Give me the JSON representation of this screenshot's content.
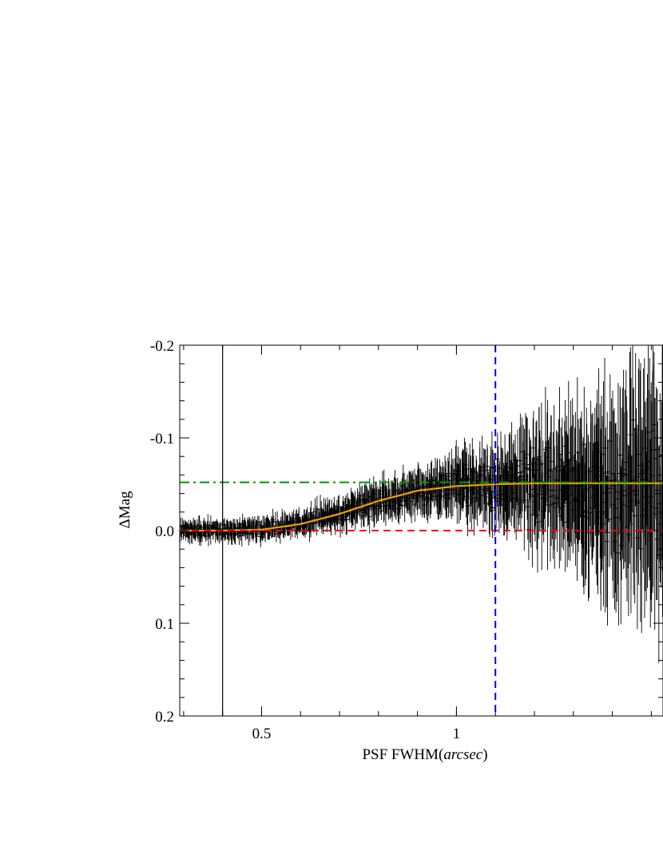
{
  "chart_data": {
    "type": "scatter",
    "title": "",
    "xlabel": "PSF FWHM",
    "xlabel_unit": "arcsec",
    "ylabel": "ΔMag",
    "xlim": [
      0.29,
      1.53
    ],
    "ylim": [
      0.2,
      -0.2
    ],
    "y_axis_inverted": true,
    "x_ticks": [
      0.5,
      1
    ],
    "x_tick_labels": [
      "0.5",
      "1"
    ],
    "y_ticks": [
      -0.2,
      -0.1,
      0.0,
      0.1,
      0.2
    ],
    "y_tick_labels": [
      "-0.2",
      "-0.1",
      "0.0",
      "0.1",
      "0.2"
    ],
    "grid": false,
    "data_series": {
      "kind": "noisy points with vertical error bars",
      "color": "#000000",
      "x_start": 0.29,
      "x_end": 1.53,
      "trend_y": [
        {
          "x": 0.3,
          "y": 0.0
        },
        {
          "x": 0.4,
          "y": 0.0
        },
        {
          "x": 0.5,
          "y": -0.001
        },
        {
          "x": 0.6,
          "y": -0.008
        },
        {
          "x": 0.7,
          "y": -0.018
        },
        {
          "x": 0.8,
          "y": -0.032
        },
        {
          "x": 0.9,
          "y": -0.043
        },
        {
          "x": 1.0,
          "y": -0.048
        },
        {
          "x": 1.1,
          "y": -0.05
        },
        {
          "x": 1.2,
          "y": -0.05
        },
        {
          "x": 1.3,
          "y": -0.045
        },
        {
          "x": 1.4,
          "y": -0.04
        },
        {
          "x": 1.5,
          "y": -0.04
        }
      ],
      "error_bar_half_height": [
        {
          "x": 0.3,
          "e": 0.008
        },
        {
          "x": 0.6,
          "e": 0.01
        },
        {
          "x": 0.9,
          "e": 0.018
        },
        {
          "x": 1.1,
          "e": 0.03
        },
        {
          "x": 1.3,
          "e": 0.06
        },
        {
          "x": 1.5,
          "e": 0.09
        }
      ]
    },
    "fit_curve": {
      "color": "#f0a000",
      "points": [
        {
          "x": 0.29,
          "y": 0.0
        },
        {
          "x": 0.4,
          "y": 0.0
        },
        {
          "x": 0.5,
          "y": -0.001
        },
        {
          "x": 0.6,
          "y": -0.007
        },
        {
          "x": 0.7,
          "y": -0.018
        },
        {
          "x": 0.8,
          "y": -0.032
        },
        {
          "x": 0.9,
          "y": -0.043
        },
        {
          "x": 1.0,
          "y": -0.048
        },
        {
          "x": 1.1,
          "y": -0.05
        },
        {
          "x": 1.2,
          "y": -0.051
        },
        {
          "x": 1.3,
          "y": -0.051
        },
        {
          "x": 1.4,
          "y": -0.051
        },
        {
          "x": 1.53,
          "y": -0.051
        }
      ]
    },
    "reference_lines": [
      {
        "orientation": "horizontal",
        "value": 0.0,
        "style": "dashed",
        "color": "#ff0000"
      },
      {
        "orientation": "horizontal",
        "value": -0.052,
        "style": "dash-dot",
        "color": "#009900"
      },
      {
        "orientation": "vertical",
        "value": 0.4,
        "style": "solid",
        "color": "#000000"
      },
      {
        "orientation": "vertical",
        "value": 1.1,
        "style": "dashed",
        "color": "#0000ff"
      }
    ]
  }
}
